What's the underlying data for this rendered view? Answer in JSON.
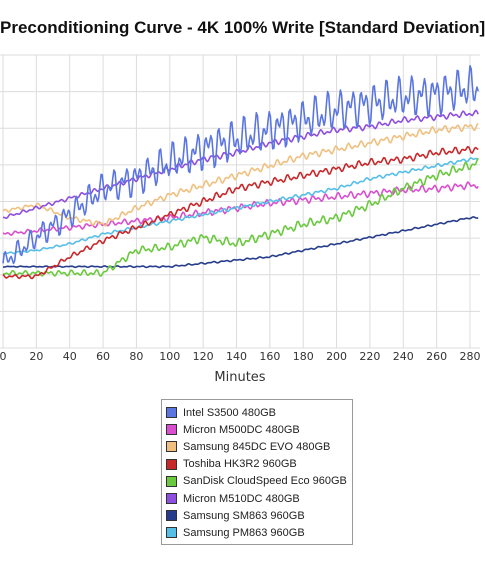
{
  "chart_data": {
    "type": "line",
    "title": "Preconditioning Curve - 4K 100% Write [Standard Deviation]",
    "xlabel": "Minutes",
    "ylabel": "",
    "xlim": [
      0,
      285
    ],
    "ylim": [
      0,
      9
    ],
    "xticks": [
      0,
      20,
      40,
      60,
      80,
      100,
      120,
      140,
      160,
      180,
      200,
      220,
      240,
      260,
      280
    ],
    "grid": true,
    "legend_position": "bottom",
    "series": [
      {
        "name": "Intel S3500 480GB",
        "color": "#5b76e0",
        "wobble": 0.7,
        "x": [
          0,
          20,
          40,
          60,
          80,
          100,
          120,
          140,
          160,
          180,
          200,
          220,
          240,
          260,
          280,
          285
        ],
        "y": [
          2.6,
          3.4,
          4.1,
          4.9,
          5.2,
          5.7,
          6.1,
          6.4,
          6.7,
          7.0,
          7.3,
          7.5,
          7.7,
          7.8,
          8.0,
          8.0
        ]
      },
      {
        "name": "Micron M500DC 480GB",
        "color": "#d94fcf",
        "wobble": 0.12,
        "x": [
          0,
          20,
          40,
          60,
          80,
          100,
          120,
          140,
          160,
          180,
          200,
          220,
          240,
          260,
          280,
          285
        ],
        "y": [
          3.5,
          3.6,
          3.7,
          3.8,
          3.9,
          4.0,
          4.15,
          4.3,
          4.45,
          4.55,
          4.65,
          4.75,
          4.85,
          4.9,
          5.0,
          5.0
        ]
      },
      {
        "name": "Samsung 845DC EVO 480GB",
        "color": "#efc07f",
        "wobble": 0.12,
        "x": [
          0,
          20,
          40,
          60,
          80,
          100,
          120,
          140,
          160,
          180,
          200,
          220,
          240,
          260,
          280,
          285
        ],
        "y": [
          4.2,
          4.4,
          4.0,
          3.8,
          4.3,
          4.7,
          5.0,
          5.3,
          5.6,
          5.9,
          6.1,
          6.3,
          6.5,
          6.7,
          6.8,
          6.8
        ]
      },
      {
        "name": "Toshiba HK3R2 960GB",
        "color": "#c9282a",
        "wobble": 0.12,
        "x": [
          0,
          20,
          40,
          60,
          80,
          100,
          120,
          140,
          160,
          180,
          200,
          220,
          240,
          260,
          280,
          285
        ],
        "y": [
          2.2,
          2.2,
          2.8,
          3.3,
          3.7,
          4.1,
          4.5,
          4.9,
          5.1,
          5.3,
          5.5,
          5.7,
          5.8,
          6.0,
          6.1,
          6.1
        ]
      },
      {
        "name": "SanDisk CloudSpeed Eco 960GB",
        "color": "#6ac93e",
        "wobble": 0.15,
        "x": [
          0,
          20,
          40,
          60,
          80,
          100,
          120,
          140,
          160,
          180,
          200,
          220,
          240,
          260,
          280,
          285
        ],
        "y": [
          2.3,
          2.3,
          2.3,
          2.3,
          3.0,
          3.1,
          3.4,
          3.2,
          3.5,
          3.8,
          4.0,
          4.4,
          4.9,
          5.3,
          5.6,
          5.7
        ]
      },
      {
        "name": "Micron M510DC 480GB",
        "color": "#8e4ee0",
        "wobble": 0.1,
        "x": [
          0,
          20,
          40,
          60,
          80,
          100,
          120,
          140,
          160,
          180,
          200,
          220,
          240,
          260,
          280,
          285
        ],
        "y": [
          4.0,
          4.3,
          4.6,
          4.9,
          5.2,
          5.5,
          5.8,
          6.0,
          6.3,
          6.5,
          6.7,
          6.8,
          7.0,
          7.1,
          7.2,
          7.2
        ]
      },
      {
        "name": "Samsung SM863 960GB",
        "color": "#263d8c",
        "wobble": 0.03,
        "x": [
          0,
          20,
          40,
          60,
          80,
          100,
          120,
          140,
          160,
          180,
          200,
          220,
          240,
          260,
          280,
          285
        ],
        "y": [
          2.5,
          2.5,
          2.5,
          2.5,
          2.5,
          2.5,
          2.6,
          2.7,
          2.8,
          3.0,
          3.2,
          3.4,
          3.6,
          3.8,
          4.0,
          4.0
        ]
      },
      {
        "name": "Samsung PM863 960GB",
        "color": "#56bfe8",
        "wobble": 0.06,
        "x": [
          0,
          20,
          40,
          60,
          80,
          100,
          120,
          140,
          160,
          180,
          200,
          220,
          240,
          260,
          280,
          285
        ],
        "y": [
          2.9,
          3.0,
          3.2,
          3.5,
          3.7,
          3.9,
          4.1,
          4.3,
          4.5,
          4.7,
          4.9,
          5.2,
          5.4,
          5.6,
          5.8,
          5.8
        ]
      }
    ]
  }
}
